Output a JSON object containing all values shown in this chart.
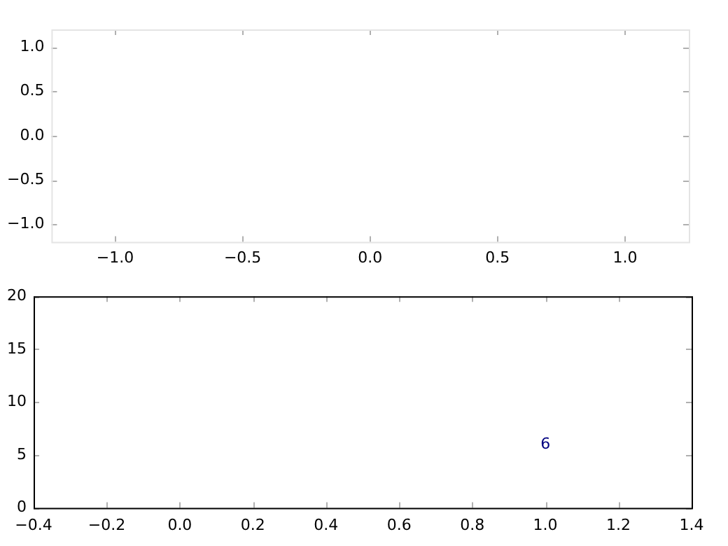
{
  "chart_data": [
    {
      "type": "scatter",
      "xlim": [
        -1.25,
        1.25
      ],
      "ylim": [
        -1.2,
        1.2
      ],
      "xticks": [
        {
          "value": -1,
          "label": "−1.0"
        },
        {
          "value": -0.5,
          "label": "−0.5"
        },
        {
          "value": 0,
          "label": "0.0"
        },
        {
          "value": 0.5,
          "label": "0.5"
        },
        {
          "value": 1,
          "label": "1.0"
        }
      ],
      "yticks": [
        {
          "value": -1,
          "label": "−1.0"
        },
        {
          "value": -0.5,
          "label": "−0.5"
        },
        {
          "value": 0,
          "label": "0.0"
        },
        {
          "value": 0.5,
          "label": "0.5"
        },
        {
          "value": 1,
          "label": "1.0"
        }
      ]
    },
    {
      "type": "scatter",
      "xlim": [
        -0.4,
        1.4
      ],
      "ylim": [
        0,
        20
      ],
      "xticks": [
        {
          "value": -0.4,
          "label": "−0.4"
        },
        {
          "value": -0.2,
          "label": "−0.2"
        },
        {
          "value": 0,
          "label": "0.0"
        },
        {
          "value": 0.2,
          "label": "0.2"
        },
        {
          "value": 0.4,
          "label": "0.4"
        },
        {
          "value": 0.6,
          "label": "0.6"
        },
        {
          "value": 0.8,
          "label": "0.8"
        },
        {
          "value": 1,
          "label": "1.0"
        },
        {
          "value": 1.2,
          "label": "1.2"
        },
        {
          "value": 1.4,
          "label": "1.4"
        }
      ],
      "yticks": [
        0,
        5,
        10,
        15,
        20
      ],
      "annotations": [
        "6"
      ]
    }
  ]
}
